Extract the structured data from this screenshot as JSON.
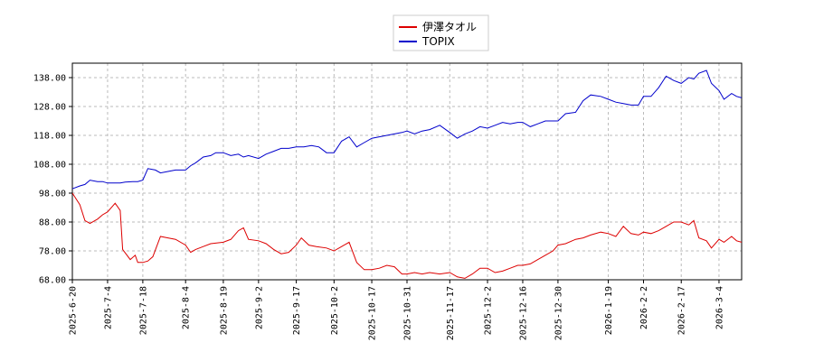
{
  "chart_data": {
    "type": "line",
    "title": "",
    "xlabel": "",
    "ylabel": "",
    "ylim": [
      68.0,
      143.0
    ],
    "yticks": [
      "68.00",
      "78.00",
      "88.00",
      "98.00",
      "108.00",
      "118.00",
      "128.00",
      "138.00"
    ],
    "xticks": [
      "2025-6-20",
      "2025-7-4",
      "2025-7-18",
      "2025-8-4",
      "2025-8-19",
      "2025-9-2",
      "2025-9-17",
      "2025-10-2",
      "2025-10-17",
      "2025-10-31",
      "2025-11-17",
      "2025-12-2",
      "2025-12-16",
      "2025-12-30",
      "2026-1-19",
      "2026-2-2",
      "2026-2-17",
      "2026-3-4"
    ],
    "grid": true,
    "legend_position": "top-center",
    "series": [
      {
        "name": "伊澤タオル",
        "color": "#dd0000",
        "points": [
          [
            "2025-6-20",
            98.0
          ],
          [
            "2025-6-23",
            94.0
          ],
          [
            "2025-6-25",
            88.5
          ],
          [
            "2025-6-27",
            87.5
          ],
          [
            "2025-6-30",
            89.0
          ],
          [
            "2025-7-2",
            90.5
          ],
          [
            "2025-7-4",
            91.5
          ],
          [
            "2025-7-7",
            94.5
          ],
          [
            "2025-7-9",
            92.0
          ],
          [
            "2025-7-10",
            78.5
          ],
          [
            "2025-7-13",
            75.0
          ],
          [
            "2025-7-15",
            76.5
          ],
          [
            "2025-7-16",
            74.0
          ],
          [
            "2025-7-18",
            74.0
          ],
          [
            "2025-7-20",
            74.5
          ],
          [
            "2025-7-22",
            76.0
          ],
          [
            "2025-7-25",
            83.0
          ],
          [
            "2025-7-28",
            82.5
          ],
          [
            "2025-7-31",
            82.0
          ],
          [
            "2025-8-4",
            80.0
          ],
          [
            "2025-8-6",
            77.5
          ],
          [
            "2025-8-8",
            78.5
          ],
          [
            "2025-8-11",
            79.5
          ],
          [
            "2025-8-14",
            80.5
          ],
          [
            "2025-8-19",
            81.0
          ],
          [
            "2025-8-22",
            82.0
          ],
          [
            "2025-8-25",
            85.0
          ],
          [
            "2025-8-27",
            86.0
          ],
          [
            "2025-8-29",
            82.0
          ],
          [
            "2025-9-2",
            81.5
          ],
          [
            "2025-9-5",
            80.5
          ],
          [
            "2025-9-8",
            78.5
          ],
          [
            "2025-9-11",
            77.0
          ],
          [
            "2025-9-14",
            77.5
          ],
          [
            "2025-9-17",
            80.0
          ],
          [
            "2025-9-19",
            82.5
          ],
          [
            "2025-9-22",
            80.0
          ],
          [
            "2025-9-25",
            79.5
          ],
          [
            "2025-9-29",
            79.0
          ],
          [
            "2025-10-2",
            78.0
          ],
          [
            "2025-10-5",
            79.5
          ],
          [
            "2025-10-8",
            81.0
          ],
          [
            "2025-10-11",
            74.0
          ],
          [
            "2025-10-14",
            71.5
          ],
          [
            "2025-10-17",
            71.5
          ],
          [
            "2025-10-20",
            72.0
          ],
          [
            "2025-10-23",
            73.0
          ],
          [
            "2025-10-26",
            72.5
          ],
          [
            "2025-10-29",
            70.0
          ],
          [
            "2025-10-31",
            70.0
          ],
          [
            "2025-11-3",
            70.5
          ],
          [
            "2025-11-6",
            70.0
          ],
          [
            "2025-11-9",
            70.5
          ],
          [
            "2025-11-13",
            70.0
          ],
          [
            "2025-11-17",
            70.5
          ],
          [
            "2025-11-20",
            69.0
          ],
          [
            "2025-11-23",
            68.5
          ],
          [
            "2025-11-26",
            70.0
          ],
          [
            "2025-11-29",
            72.0
          ],
          [
            "2025-12-2",
            72.0
          ],
          [
            "2025-12-5",
            70.5
          ],
          [
            "2025-12-8",
            71.0
          ],
          [
            "2025-12-11",
            72.0
          ],
          [
            "2025-12-14",
            73.0
          ],
          [
            "2025-12-16",
            73.0
          ],
          [
            "2025-12-19",
            73.5
          ],
          [
            "2025-12-22",
            75.0
          ],
          [
            "2025-12-25",
            76.5
          ],
          [
            "2025-12-28",
            78.0
          ],
          [
            "2025-12-30",
            80.0
          ],
          [
            "2026-1-2",
            80.5
          ],
          [
            "2026-1-6",
            82.0
          ],
          [
            "2026-1-9",
            82.5
          ],
          [
            "2026-1-12",
            83.5
          ],
          [
            "2026-1-16",
            84.5
          ],
          [
            "2026-1-19",
            84.0
          ],
          [
            "2026-1-22",
            83.0
          ],
          [
            "2026-1-25",
            86.5
          ],
          [
            "2026-1-28",
            84.0
          ],
          [
            "2026-1-31",
            83.5
          ],
          [
            "2026-2-2",
            84.5
          ],
          [
            "2026-2-5",
            84.0
          ],
          [
            "2026-2-8",
            85.0
          ],
          [
            "2026-2-11",
            86.5
          ],
          [
            "2026-2-14",
            88.0
          ],
          [
            "2026-2-17",
            88.0
          ],
          [
            "2026-2-20",
            87.0
          ],
          [
            "2026-2-22",
            88.5
          ],
          [
            "2026-2-24",
            82.5
          ],
          [
            "2026-2-27",
            81.5
          ],
          [
            "2026-3-1",
            79.0
          ],
          [
            "2026-3-4",
            82.0
          ],
          [
            "2026-3-6",
            81.0
          ],
          [
            "2026-3-9",
            83.0
          ],
          [
            "2026-3-11",
            81.5
          ],
          [
            "2026-3-13",
            81.0
          ]
        ]
      },
      {
        "name": "TOPIX",
        "color": "#0000cc",
        "points": [
          [
            "2025-6-20",
            99.5
          ],
          [
            "2025-6-23",
            100.5
          ],
          [
            "2025-6-25",
            101.0
          ],
          [
            "2025-6-27",
            102.5
          ],
          [
            "2025-6-30",
            102.0
          ],
          [
            "2025-7-2",
            102.0
          ],
          [
            "2025-7-4",
            101.5
          ],
          [
            "2025-7-7",
            101.5
          ],
          [
            "2025-7-9",
            101.5
          ],
          [
            "2025-7-11",
            101.8
          ],
          [
            "2025-7-14",
            102.0
          ],
          [
            "2025-7-16",
            102.0
          ],
          [
            "2025-7-18",
            102.5
          ],
          [
            "2025-7-20",
            106.5
          ],
          [
            "2025-7-23",
            106.0
          ],
          [
            "2025-7-25",
            105.0
          ],
          [
            "2025-7-28",
            105.5
          ],
          [
            "2025-7-31",
            106.0
          ],
          [
            "2025-8-4",
            106.0
          ],
          [
            "2025-8-6",
            107.5
          ],
          [
            "2025-8-8",
            108.5
          ],
          [
            "2025-8-11",
            110.5
          ],
          [
            "2025-8-14",
            111.0
          ],
          [
            "2025-8-16",
            112.0
          ],
          [
            "2025-8-19",
            112.0
          ],
          [
            "2025-8-22",
            111.0
          ],
          [
            "2025-8-25",
            111.5
          ],
          [
            "2025-8-27",
            110.5
          ],
          [
            "2025-8-29",
            111.0
          ],
          [
            "2025-9-2",
            110.0
          ],
          [
            "2025-9-5",
            111.5
          ],
          [
            "2025-9-8",
            112.5
          ],
          [
            "2025-9-11",
            113.5
          ],
          [
            "2025-9-14",
            113.5
          ],
          [
            "2025-9-17",
            114.0
          ],
          [
            "2025-9-20",
            114.0
          ],
          [
            "2025-9-23",
            114.5
          ],
          [
            "2025-9-26",
            114.0
          ],
          [
            "2025-9-29",
            112.0
          ],
          [
            "2025-10-2",
            112.0
          ],
          [
            "2025-10-5",
            116.0
          ],
          [
            "2025-10-8",
            117.5
          ],
          [
            "2025-10-11",
            114.0
          ],
          [
            "2025-10-14",
            115.5
          ],
          [
            "2025-10-17",
            117.0
          ],
          [
            "2025-10-20",
            117.5
          ],
          [
            "2025-10-23",
            118.0
          ],
          [
            "2025-10-26",
            118.5
          ],
          [
            "2025-10-29",
            119.0
          ],
          [
            "2025-10-31",
            119.5
          ],
          [
            "2025-11-3",
            118.5
          ],
          [
            "2025-11-6",
            119.5
          ],
          [
            "2025-11-9",
            120.0
          ],
          [
            "2025-11-13",
            121.5
          ],
          [
            "2025-11-17",
            119.0
          ],
          [
            "2025-11-20",
            117.0
          ],
          [
            "2025-11-23",
            118.5
          ],
          [
            "2025-11-26",
            119.5
          ],
          [
            "2025-11-29",
            121.0
          ],
          [
            "2025-12-2",
            120.5
          ],
          [
            "2025-12-5",
            121.5
          ],
          [
            "2025-12-8",
            122.5
          ],
          [
            "2025-12-11",
            122.0
          ],
          [
            "2025-12-14",
            122.5
          ],
          [
            "2025-12-16",
            122.5
          ],
          [
            "2025-12-19",
            121.0
          ],
          [
            "2025-12-22",
            122.0
          ],
          [
            "2025-12-25",
            123.0
          ],
          [
            "2025-12-28",
            123.0
          ],
          [
            "2025-12-30",
            123.0
          ],
          [
            "2026-1-2",
            125.5
          ],
          [
            "2026-1-6",
            126.0
          ],
          [
            "2026-1-9",
            130.0
          ],
          [
            "2026-1-12",
            132.0
          ],
          [
            "2026-1-16",
            131.5
          ],
          [
            "2026-1-19",
            130.5
          ],
          [
            "2026-1-22",
            129.5
          ],
          [
            "2026-1-25",
            129.0
          ],
          [
            "2026-1-28",
            128.5
          ],
          [
            "2026-1-31",
            128.5
          ],
          [
            "2026-2-2",
            131.5
          ],
          [
            "2026-2-5",
            131.5
          ],
          [
            "2026-2-8",
            134.5
          ],
          [
            "2026-2-11",
            138.5
          ],
          [
            "2026-2-14",
            137.0
          ],
          [
            "2026-2-17",
            136.0
          ],
          [
            "2026-2-20",
            138.0
          ],
          [
            "2026-2-22",
            137.5
          ],
          [
            "2026-2-24",
            139.5
          ],
          [
            "2026-2-27",
            140.5
          ],
          [
            "2026-3-1",
            136.0
          ],
          [
            "2026-3-4",
            133.5
          ],
          [
            "2026-3-6",
            130.5
          ],
          [
            "2026-3-9",
            132.5
          ],
          [
            "2026-3-11",
            131.5
          ],
          [
            "2026-3-13",
            131.0
          ]
        ]
      }
    ]
  }
}
